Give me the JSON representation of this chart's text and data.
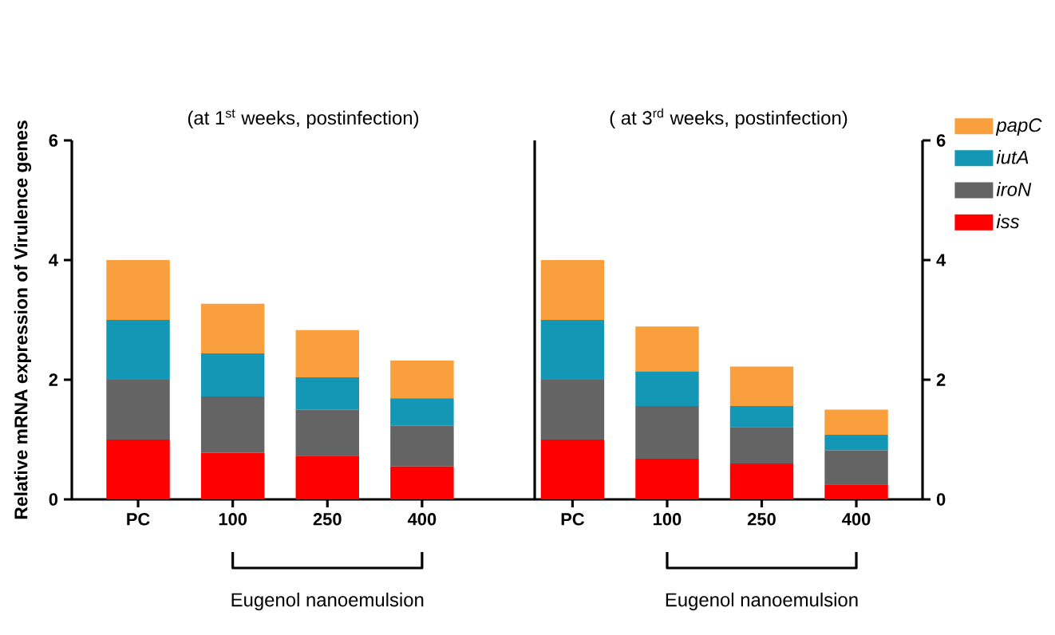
{
  "chart_data": [
    {
      "type": "bar",
      "stacked": true,
      "title": "(at 1$^{st}$ weeks, postinfection)",
      "ylabel": "Relative mRNA expression of Virulence genes",
      "xlabel": "Eugenol nanoemulsion",
      "categories": [
        "PC",
        "100",
        "250",
        "400"
      ],
      "ylim": [
        0,
        6
      ],
      "yticks": [
        0,
        2,
        4,
        6
      ],
      "series": [
        {
          "color": "#ff0000",
          "values": [
            1.0,
            0.78,
            0.73,
            0.55
          ]
        },
        {
          "color": "#646464",
          "values": [
            1.0,
            0.94,
            0.77,
            0.68
          ]
        },
        {
          "color": "#1497b4",
          "values": [
            1.0,
            0.72,
            0.54,
            0.46
          ]
        },
        {
          "color": "#fa9f3e",
          "values": [
            1.0,
            0.83,
            0.79,
            0.63
          ]
        }
      ]
    },
    {
      "type": "bar",
      "stacked": true,
      "title": "( at 3$^{rd}$ weeks, postinfection)",
      "xlabel": "Eugenol nanoemulsion",
      "categories": [
        "PC",
        "100",
        "250",
        "400"
      ],
      "ylim": [
        0,
        6
      ],
      "yticks": [
        0,
        2,
        4,
        6
      ],
      "legend": "right",
      "series": [
        {
          "name": "*iss*",
          "color": "#ff0000",
          "values": [
            1.0,
            0.68,
            0.6,
            0.25
          ]
        },
        {
          "name": "*iroN*",
          "color": "#646464",
          "values": [
            1.0,
            0.88,
            0.61,
            0.57
          ]
        },
        {
          "name": "*iutA*",
          "color": "#1497b4",
          "values": [
            1.0,
            0.58,
            0.35,
            0.26
          ]
        },
        {
          "name": "*papC*",
          "color": "#fa9f3e",
          "values": [
            1.0,
            0.75,
            0.66,
            0.42
          ]
        }
      ]
    }
  ]
}
